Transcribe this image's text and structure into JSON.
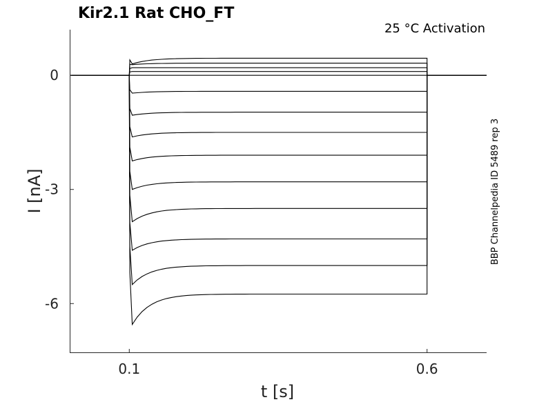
{
  "chart_data": {
    "type": "line",
    "title": "Kir2.1  Rat  CHO_FT",
    "subtitle": "25 °C  Activation",
    "side_label": "BBP Channelpedia ID 5489 rep 3",
    "xlabel": "t [s]",
    "ylabel": "I [nA]",
    "xlim": [
      0.0,
      0.7
    ],
    "ylim": [
      -7.3,
      1.2
    ],
    "x_ticks": [
      0.1,
      0.6
    ],
    "x_tick_labels": [
      "0.1",
      "0.6"
    ],
    "y_ticks": [
      0,
      -3,
      -6
    ],
    "y_tick_labels": [
      "0",
      "-3",
      "-6"
    ],
    "grid": false,
    "step_start": 0.1,
    "step_end": 0.6,
    "series": [
      {
        "steady": -5.75,
        "peak": -6.55
      },
      {
        "steady": -5.0,
        "peak": -5.5
      },
      {
        "steady": -4.3,
        "peak": -4.6
      },
      {
        "steady": -3.5,
        "peak": -3.85
      },
      {
        "steady": -2.8,
        "peak": -3.0
      },
      {
        "steady": -2.1,
        "peak": -2.25
      },
      {
        "steady": -1.5,
        "peak": -1.62
      },
      {
        "steady": -0.97,
        "peak": -1.05
      },
      {
        "steady": -0.42,
        "peak": -0.47
      },
      {
        "steady": 0.0,
        "peak": 0.0
      },
      {
        "steady": 0.1,
        "peak": 0.1
      },
      {
        "steady": 0.2,
        "peak": 0.2
      },
      {
        "steady": 0.32,
        "peak": 0.28
      },
      {
        "steady": 0.45,
        "peak": 0.3
      }
    ]
  }
}
